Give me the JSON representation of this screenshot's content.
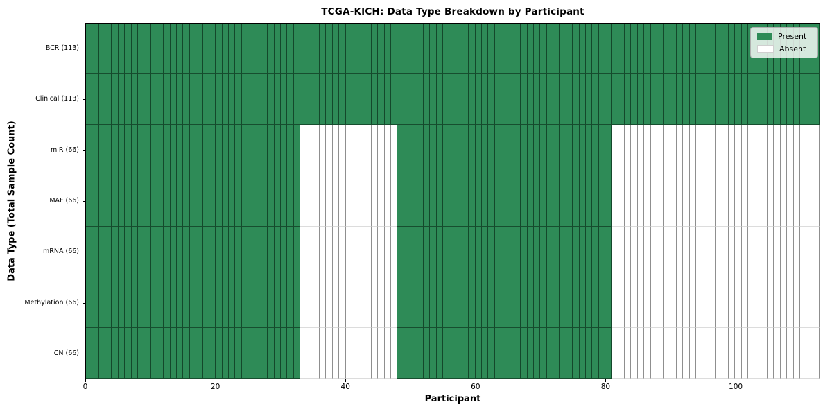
{
  "chart_data": {
    "type": "heatmap",
    "title": "TCGA-KICH: Data Type Breakdown by Participant",
    "xlabel": "Participant",
    "ylabel": "Data Type (Total Sample Count)",
    "x_range": [
      0,
      113
    ],
    "n_participants": 113,
    "x_ticks": [
      0,
      20,
      40,
      60,
      80,
      100
    ],
    "legend_position": "upper right",
    "legend": [
      {
        "label": "Present",
        "color": "#2E8B57"
      },
      {
        "label": "Absent",
        "color": "#FFFFFF"
      }
    ],
    "rows": [
      {
        "label": "BCR (113)",
        "data_type": "BCR",
        "total_samples": 113,
        "present_segments": [
          [
            0,
            113
          ]
        ],
        "absent_segments": []
      },
      {
        "label": "Clinical (113)",
        "data_type": "Clinical",
        "total_samples": 113,
        "present_segments": [
          [
            0,
            113
          ]
        ],
        "absent_segments": []
      },
      {
        "label": "miR (66)",
        "data_type": "miR",
        "total_samples": 66,
        "present_segments": [
          [
            0,
            33
          ],
          [
            48,
            81
          ]
        ],
        "absent_segments": [
          [
            33,
            48
          ],
          [
            81,
            113
          ]
        ]
      },
      {
        "label": "MAF (66)",
        "data_type": "MAF",
        "total_samples": 66,
        "present_segments": [
          [
            0,
            33
          ],
          [
            48,
            81
          ]
        ],
        "absent_segments": [
          [
            33,
            48
          ],
          [
            81,
            113
          ]
        ]
      },
      {
        "label": "mRNA (66)",
        "data_type": "mRNA",
        "total_samples": 66,
        "present_segments": [
          [
            0,
            33
          ],
          [
            48,
            81
          ]
        ],
        "absent_segments": [
          [
            33,
            48
          ],
          [
            81,
            113
          ]
        ]
      },
      {
        "label": "Methylation (66)",
        "data_type": "Methylation",
        "total_samples": 66,
        "present_segments": [
          [
            0,
            33
          ],
          [
            48,
            81
          ]
        ],
        "absent_segments": [
          [
            33,
            48
          ],
          [
            81,
            113
          ]
        ]
      },
      {
        "label": "CN (66)",
        "data_type": "CN",
        "total_samples": 66,
        "present_segments": [
          [
            0,
            33
          ],
          [
            48,
            81
          ]
        ],
        "absent_segments": [
          [
            33,
            48
          ],
          [
            81,
            113
          ]
        ]
      }
    ]
  }
}
